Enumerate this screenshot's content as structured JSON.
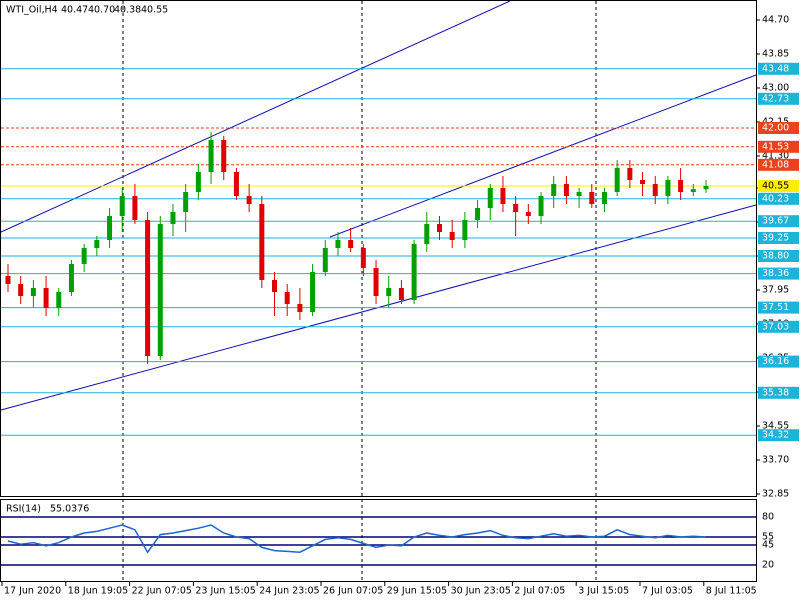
{
  "chart_data": {
    "type": "candlestick",
    "title": "WTI_Oil,H4",
    "quote": [
      "40.47",
      "40.70",
      "40.38",
      "40.55"
    ],
    "ylim": [
      32.775,
      45.175
    ],
    "yticks": [
      32.85,
      {
        "value": 33.7,
        "label": "33.70"
      },
      34.55,
      35.4,
      36.25,
      {
        "value": 37.1,
        "label": "37.10"
      },
      37.95,
      {
        "value": 38.8,
        "label": "38.80"
      },
      39.65,
      {
        "value": 40.5,
        "label": "40.50"
      },
      {
        "value": 41.3,
        "label": "41.30"
      },
      42.15,
      {
        "value": 43.0,
        "label": "43.00"
      },
      43.85,
      {
        "value": 44.7,
        "label": "44.70"
      }
    ],
    "x_labels": [
      "17 Jun 2020",
      "18 Jun 19:05",
      "22 Jun 07:05",
      "23 Jun 15:05",
      "24 Jun 23:05",
      "26 Jun 07:05",
      "29 Jun 15:05",
      "30 Jun 23:05",
      "2 Jul 07:05",
      "3 Jul 15:05",
      "7 Jul 03:05",
      "8 Jul 11:05"
    ],
    "up_color": "#00a000",
    "down_color": "#e00000",
    "open": [
      38.3,
      38.1,
      37.8,
      38.0,
      37.5,
      37.9,
      38.6,
      39.0,
      39.2,
      39.8,
      40.3,
      39.7,
      36.3,
      39.6,
      39.9,
      40.4,
      40.9,
      41.7,
      40.9,
      40.3,
      40.1,
      38.2,
      37.9,
      37.6,
      37.4,
      38.4,
      39.0,
      39.2,
      39.0,
      38.5,
      37.8,
      38.0,
      37.7,
      39.1,
      39.6,
      39.4,
      39.2,
      39.7,
      40.0,
      40.5,
      40.1,
      39.9,
      39.8,
      40.3,
      40.6,
      40.3,
      40.4,
      40.1,
      40.4,
      41.0,
      40.7,
      40.6,
      40.3,
      40.7,
      40.4,
      40.47
    ],
    "high": [
      38.6,
      38.3,
      38.2,
      38.3,
      38.0,
      38.7,
      39.1,
      39.3,
      40.0,
      40.5,
      40.6,
      39.9,
      39.8,
      40.1,
      40.6,
      41.1,
      41.9,
      41.8,
      41.0,
      40.6,
      40.3,
      38.4,
      38.1,
      38.0,
      38.6,
      39.2,
      39.4,
      39.5,
      39.1,
      38.7,
      38.3,
      38.2,
      39.2,
      39.9,
      39.8,
      39.7,
      39.9,
      40.2,
      40.6,
      40.8,
      40.3,
      40.1,
      40.4,
      40.8,
      40.8,
      40.5,
      40.6,
      40.5,
      41.2,
      41.2,
      40.9,
      40.8,
      40.8,
      41.0,
      40.6,
      40.7
    ],
    "low": [
      37.9,
      37.6,
      37.5,
      37.3,
      37.3,
      37.8,
      38.4,
      38.8,
      39.0,
      39.4,
      39.6,
      36.1,
      36.2,
      39.3,
      39.4,
      40.2,
      40.6,
      40.7,
      40.2,
      39.9,
      38.0,
      37.3,
      37.3,
      37.2,
      37.3,
      38.3,
      38.8,
      38.9,
      38.3,
      37.6,
      37.5,
      37.6,
      37.6,
      38.9,
      39.2,
      39.0,
      39.0,
      39.5,
      39.7,
      39.9,
      39.3,
      39.6,
      39.6,
      40.0,
      40.1,
      40.0,
      40.0,
      39.9,
      40.3,
      40.5,
      40.3,
      40.1,
      40.1,
      40.2,
      40.3,
      40.38
    ],
    "close": [
      38.1,
      37.8,
      38.0,
      37.5,
      37.9,
      38.6,
      39.0,
      39.2,
      39.8,
      40.3,
      39.7,
      36.3,
      39.6,
      39.9,
      40.4,
      40.9,
      41.7,
      40.9,
      40.3,
      40.1,
      38.2,
      37.9,
      37.6,
      37.4,
      38.4,
      39.0,
      39.2,
      39.0,
      38.5,
      37.8,
      38.0,
      37.7,
      39.1,
      39.6,
      39.4,
      39.2,
      39.7,
      40.0,
      40.5,
      40.1,
      39.9,
      39.8,
      40.3,
      40.6,
      40.3,
      40.4,
      40.1,
      40.4,
      41.0,
      40.7,
      40.6,
      40.3,
      40.7,
      40.4,
      40.47,
      40.55
    ],
    "levels": {
      "values": [
        43.48,
        42.73,
        42.0,
        41.53,
        41.08,
        40.23,
        39.67,
        39.25,
        38.8,
        38.36,
        37.51,
        37.03,
        36.16,
        35.38,
        34.32
      ],
      "value_labels": [
        "43.48",
        "42.73",
        "42.00",
        "41.53",
        "41.08",
        "40.23",
        "39.67",
        "39.25",
        "38.80",
        "38.36",
        "37.51",
        "37.03",
        "36.16",
        "35.38",
        "34.32"
      ],
      "colors": [
        "#1fb3d8",
        "#1fb3d8",
        "#e8431c",
        "#e8431c",
        "#e8431c",
        "#1fb3d8",
        "#1fb3d8",
        "#1fb3d8",
        "#1fb3d8",
        "#1fb3d8",
        "#1fb3d8",
        "#1fb3d8",
        "#1fb3d8",
        "#1fb3d8",
        "#1fb3d8"
      ]
    },
    "current_price": {
      "value": 40.55,
      "label": "40.55",
      "color": "#ffee00"
    },
    "rsi": {
      "title": "RSI(14)",
      "last": 55.0376,
      "color": "#1e64d0",
      "ylim": [
        0,
        100
      ],
      "levels": [
        80,
        55,
        45,
        20
      ],
      "values": [
        50,
        46,
        48,
        44,
        48,
        55,
        60,
        62,
        66,
        70,
        64,
        36,
        58,
        60,
        63,
        66,
        70,
        60,
        55,
        53,
        42,
        38,
        37,
        36,
        44,
        52,
        54,
        52,
        47,
        42,
        45,
        44,
        55,
        60,
        57,
        55,
        58,
        60,
        63,
        57,
        54,
        53,
        56,
        59,
        56,
        57,
        55,
        56,
        64,
        58,
        56,
        54,
        57,
        55,
        56,
        55.0376
      ]
    }
  }
}
